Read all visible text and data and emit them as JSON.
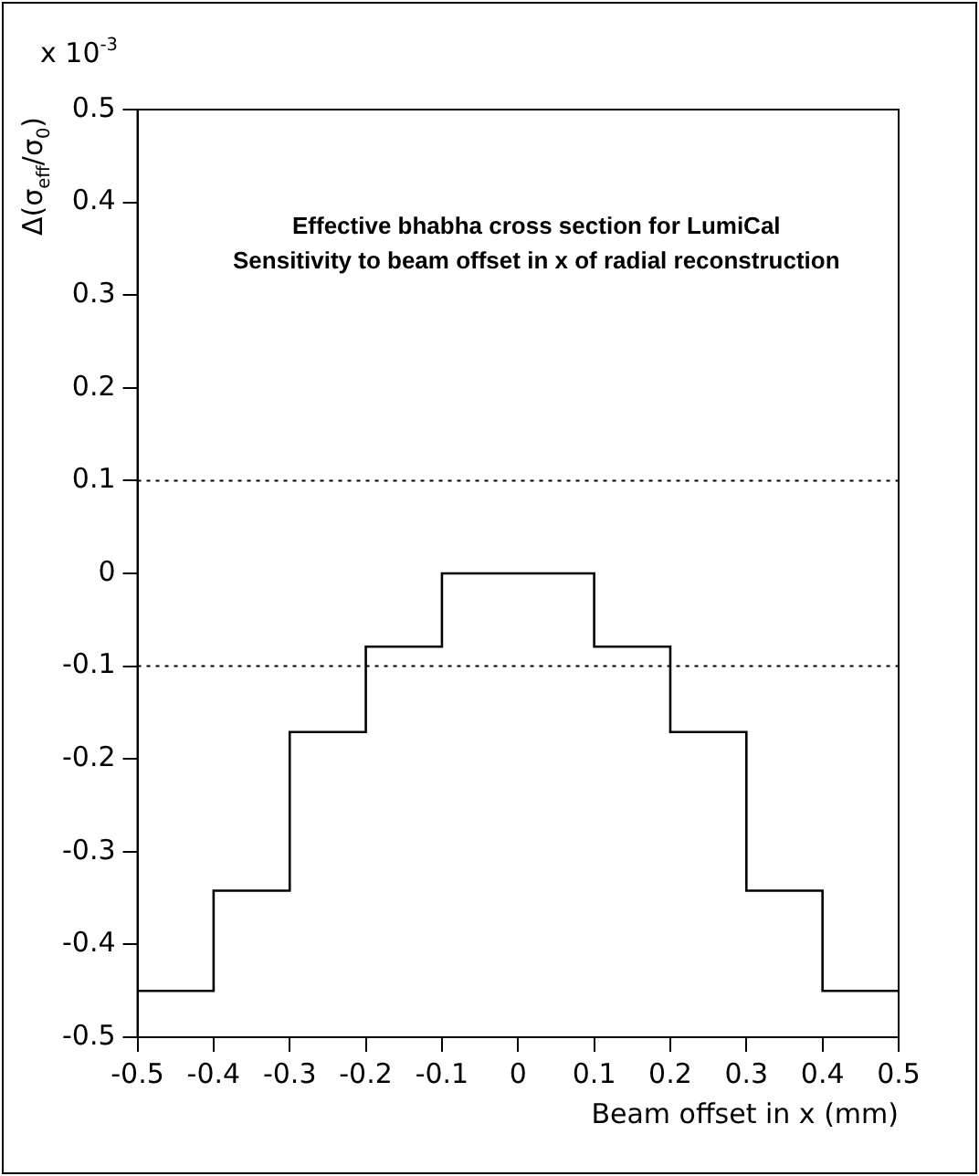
{
  "chart_data": {
    "type": "histogram",
    "title": "Effective bhabha cross section for LumiCal",
    "subtitle": "Sensitivity to beam offset in x of radial reconstruction",
    "xlabel": "Beam offset in x (mm)",
    "ylabel": "Δ(σ$_{eff}$/σ$_{0}$)",
    "annotations": [
      "x 10$^{-3}$"
    ],
    "bins": [
      -0.5,
      -0.4,
      -0.3,
      -0.2,
      -0.1,
      0,
      0.1,
      0.2,
      0.3,
      0.4,
      0.5
    ],
    "values": [
      -0.45,
      -0.342,
      -0.171,
      -0.079,
      0,
      0,
      -0.079,
      -0.171,
      -0.342,
      -0.45
    ],
    "color": "#000000",
    "xlim": [
      -0.5,
      0.5
    ],
    "xticks": [
      -0.5,
      -0.4,
      -0.3,
      -0.2,
      -0.1,
      0,
      0.1,
      0.2,
      0.3,
      0.4,
      0.5
    ],
    "ylim": [
      -0.5,
      0.5
    ],
    "yticks": [
      -0.5,
      -0.4,
      -0.3,
      -0.2,
      -0.1,
      0,
      0.1,
      0.2,
      0.3,
      0.4,
      0.5
    ],
    "ref_lines": [
      {
        "axis": "y",
        "value": 0.1,
        "line_style": "dotted",
        "color": "#000000"
      },
      {
        "axis": "y",
        "value": -0.1,
        "line_style": "dotted",
        "color": "#000000"
      }
    ],
    "grid": false,
    "legend": false
  }
}
